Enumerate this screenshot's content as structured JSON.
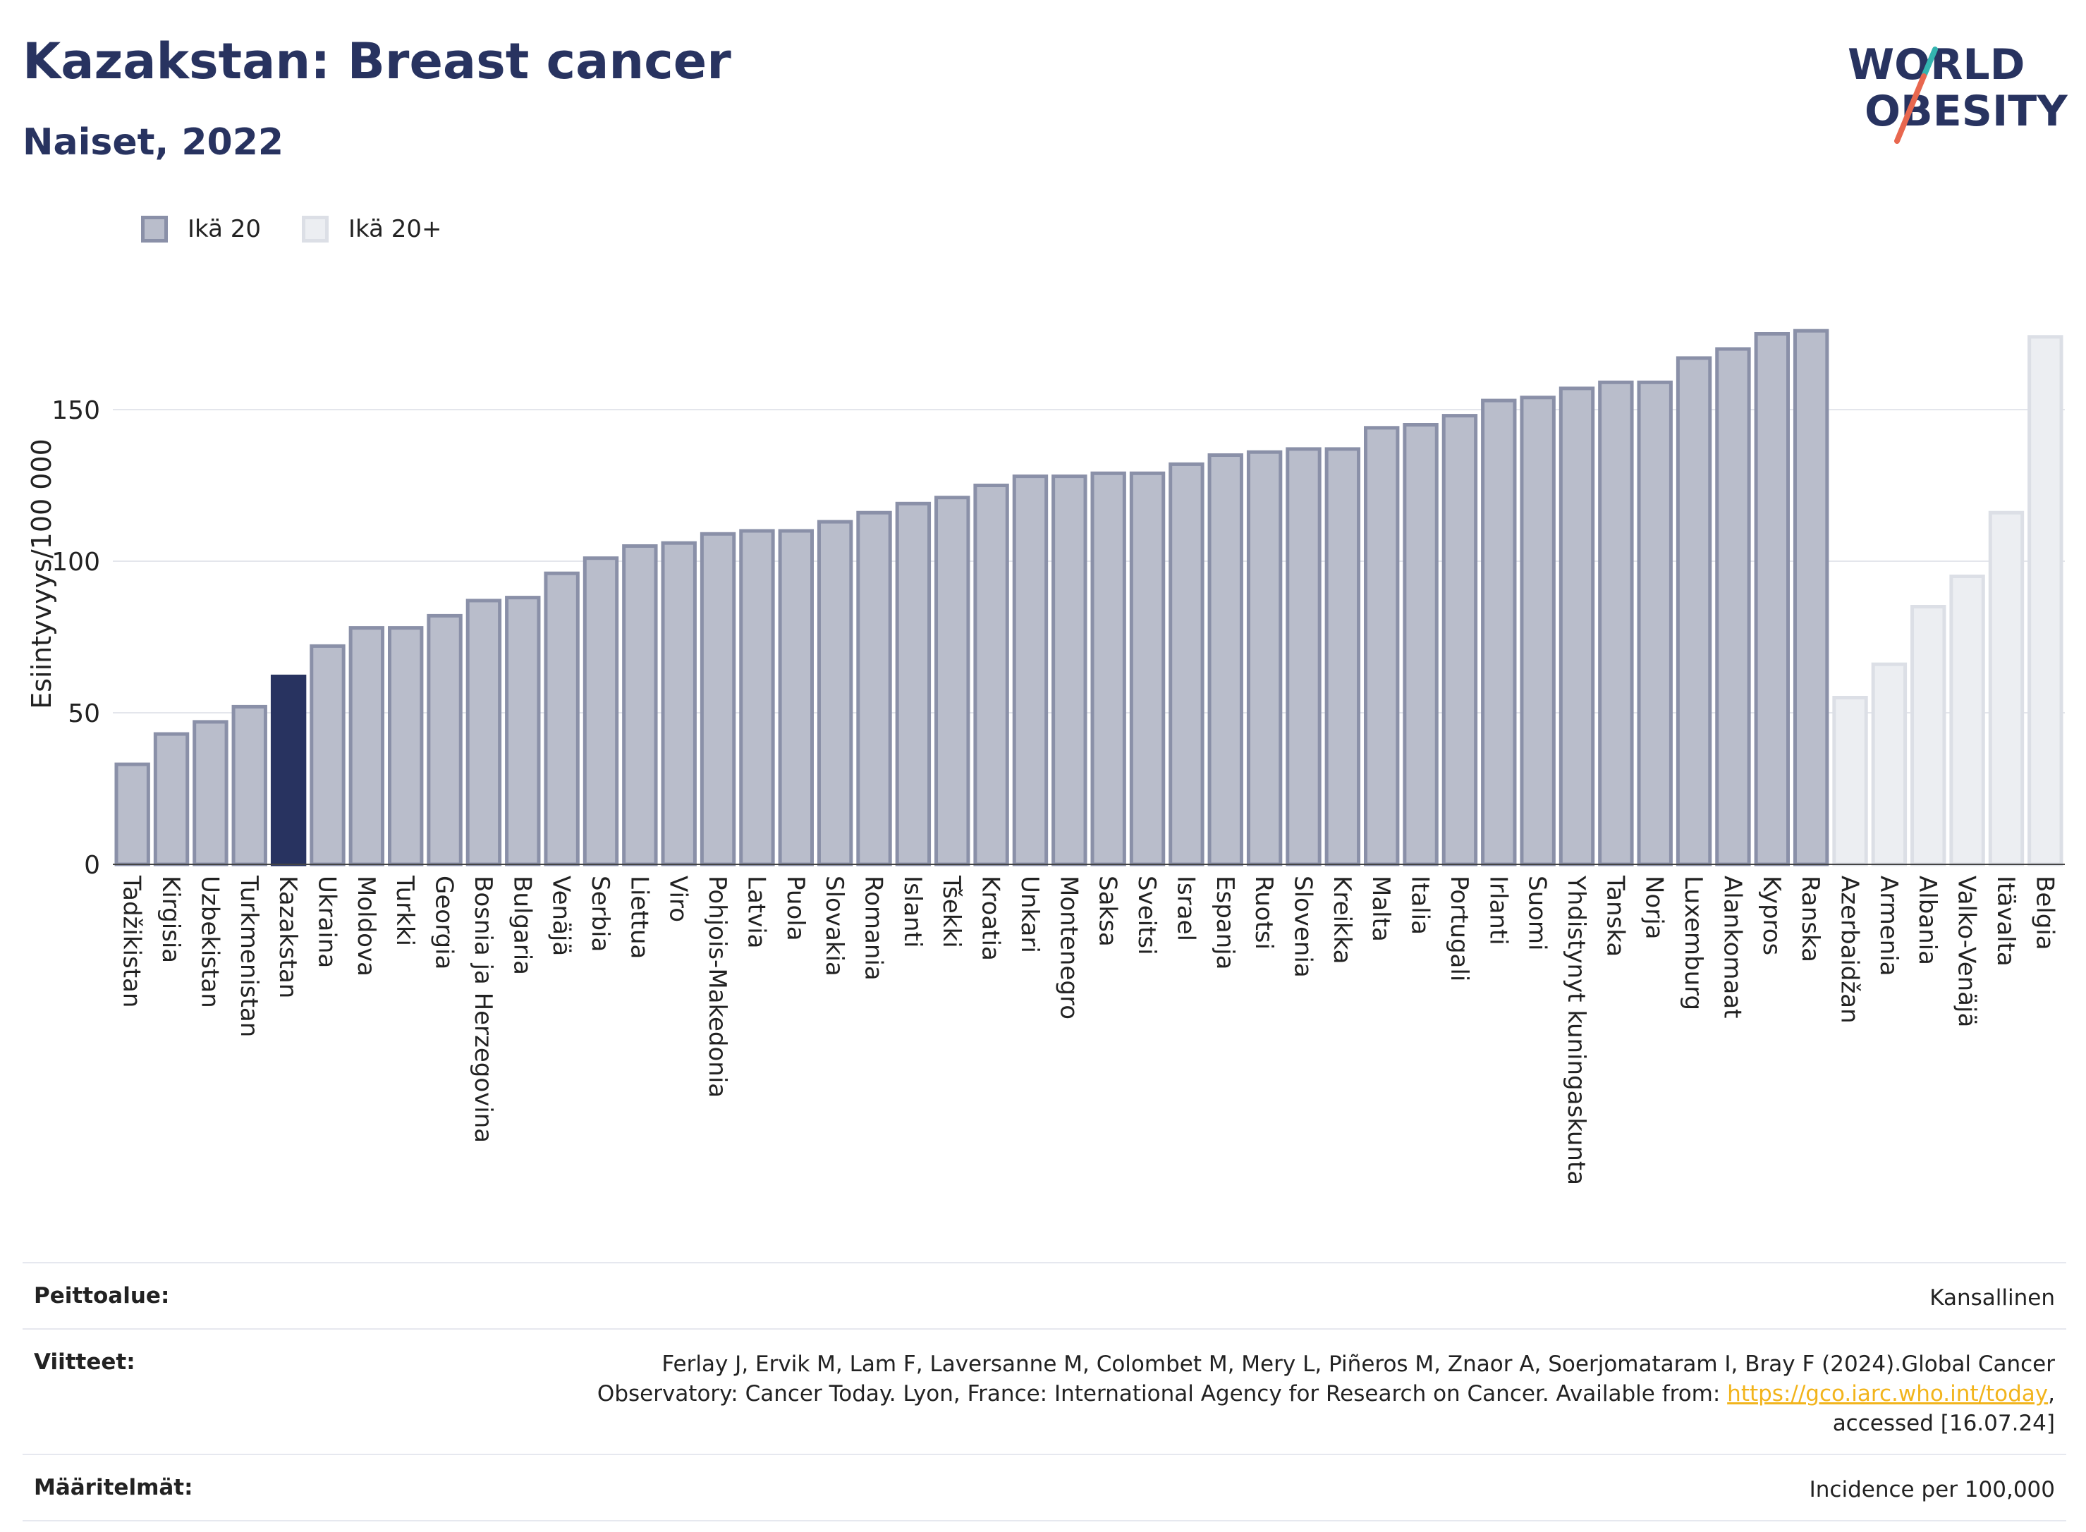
{
  "header": {
    "title": "Kazakstan: Breast cancer",
    "subtitle": "Naiset, 2022"
  },
  "logo": {
    "line1": "WORLD",
    "line2": "OBESITY"
  },
  "legend": [
    {
      "label": "Ikä 20",
      "color": "#b9bdcb",
      "border": "#8a90a8"
    },
    {
      "label": "Ikä 20+",
      "color": "#eceef2",
      "border": "#dcdfe6"
    }
  ],
  "colors": {
    "highlight": "#283360",
    "primary": "#b9bdcb",
    "primary_border": "#8a90a8",
    "secondary": "#eceef2",
    "secondary_border": "#dcdfe6"
  },
  "chart_data": {
    "type": "bar",
    "ylabel": "Esiintyvyys/100 000",
    "ylim": [
      0,
      180
    ],
    "yticks": [
      0,
      50,
      100,
      150
    ],
    "grid": true,
    "legend_position": "top-left",
    "highlight": "Kazakstan",
    "categories": [
      "Tadžikistan",
      "Kirgisia",
      "Uzbekistan",
      "Turkmenistan",
      "Kazakstan",
      "Ukraina",
      "Moldova",
      "Turkki",
      "Georgia",
      "Bosnia ja Herzegovina",
      "Bulgaria",
      "Venäjä",
      "Serbia",
      "Liettua",
      "Viro",
      "Pohjois-Makedonia",
      "Latvia",
      "Puola",
      "Slovakia",
      "Romania",
      "Islanti",
      "Tšekki",
      "Kroatia",
      "Unkari",
      "Montenegro",
      "Saksa",
      "Sveitsi",
      "Israel",
      "Espanja",
      "Ruotsi",
      "Slovenia",
      "Kreikka",
      "Malta",
      "Italia",
      "Portugali",
      "Irlanti",
      "Suomi",
      "Yhdistynyt kuningaskunta",
      "Tanska",
      "Norja",
      "Luxemburg",
      "Alankomaat",
      "Kypros",
      "Ranska",
      "Azerbaidžan",
      "Armenia",
      "Albania",
      "Valko-Venäjä",
      "Itävalta",
      "Belgia"
    ],
    "values": [
      33,
      43,
      47,
      52,
      62,
      72,
      78,
      78,
      82,
      87,
      88,
      96,
      101,
      105,
      106,
      109,
      110,
      110,
      113,
      116,
      119,
      121,
      125,
      128,
      128,
      129,
      129,
      132,
      135,
      136,
      137,
      137,
      144,
      145,
      148,
      153,
      154,
      157,
      159,
      159,
      167,
      170,
      175,
      176,
      55,
      66,
      85,
      95,
      116,
      174
    ],
    "groups": [
      "Ikä 20",
      "Ikä 20",
      "Ikä 20",
      "Ikä 20",
      "Ikä 20",
      "Ikä 20",
      "Ikä 20",
      "Ikä 20",
      "Ikä 20",
      "Ikä 20",
      "Ikä 20",
      "Ikä 20",
      "Ikä 20",
      "Ikä 20",
      "Ikä 20",
      "Ikä 20",
      "Ikä 20",
      "Ikä 20",
      "Ikä 20",
      "Ikä 20",
      "Ikä 20",
      "Ikä 20",
      "Ikä 20",
      "Ikä 20",
      "Ikä 20",
      "Ikä 20",
      "Ikä 20",
      "Ikä 20",
      "Ikä 20",
      "Ikä 20",
      "Ikä 20",
      "Ikä 20",
      "Ikä 20",
      "Ikä 20",
      "Ikä 20",
      "Ikä 20",
      "Ikä 20",
      "Ikä 20",
      "Ikä 20",
      "Ikä 20",
      "Ikä 20",
      "Ikä 20",
      "Ikä 20",
      "Ikä 20",
      "Ikä 20+",
      "Ikä 20+",
      "Ikä 20+",
      "Ikä 20+",
      "Ikä 20+",
      "Ikä 20+"
    ]
  },
  "footer": {
    "coverage_label": "Peittoalue:",
    "coverage_value": "Kansallinen",
    "references_label": "Viitteet:",
    "references_line1": "Ferlay J, Ervik M, Lam F, Laversanne M, Colombet M, Mery L, Piñeros M, Znaor A, Soerjomataram I, Bray F (2024).Global Cancer",
    "references_line2": "Observatory: Cancer Today. Lyon, France: International Agency for Research on Cancer. Available from: ",
    "references_link": "https://gco.iarc.who.int/today",
    "references_after_link": ",",
    "references_line3": "accessed [16.07.24]",
    "definitions_label": "Määritelmät:",
    "definitions_value": "Incidence per 100,000"
  }
}
